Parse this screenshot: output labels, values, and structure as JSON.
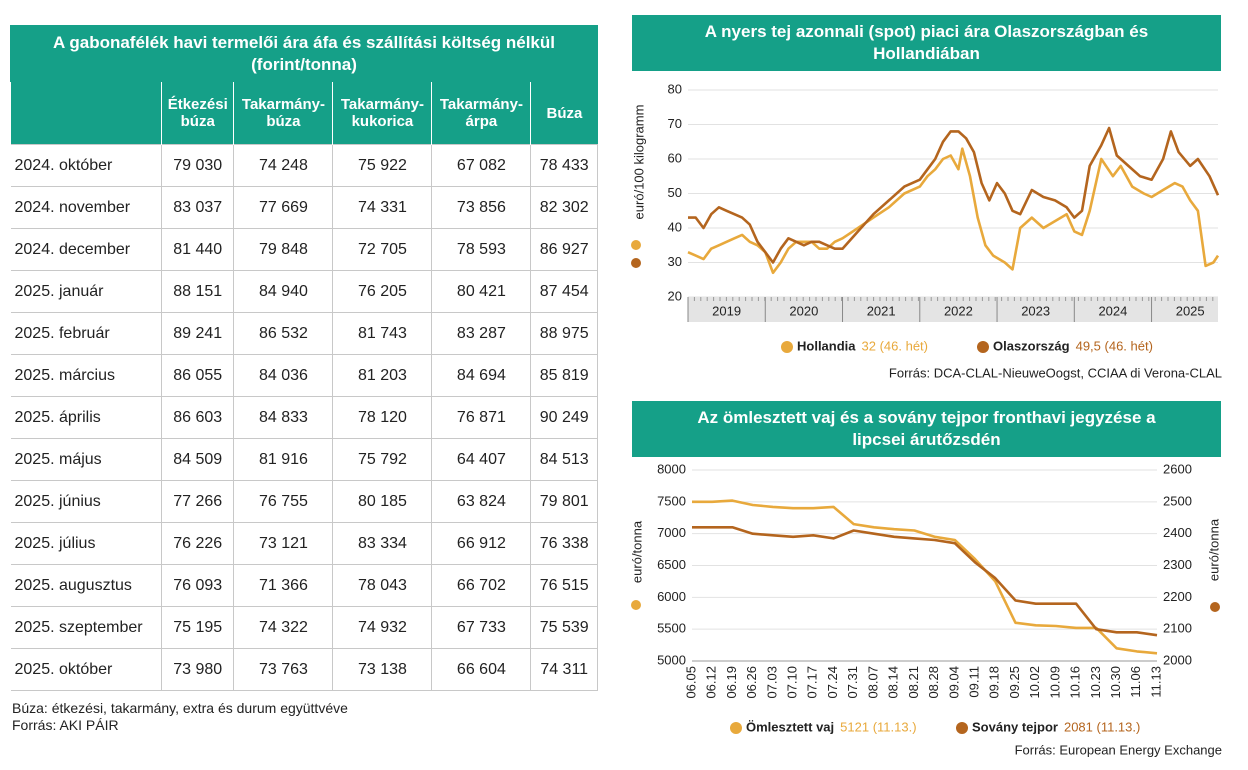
{
  "table": {
    "title": "A gabonafélék havi termelői ára áfa és szállítási költség nélkül (forint/tonna)",
    "header": [
      "Étkezési\nbúza",
      "Takarmány-\nbúza",
      "Takarmány-\nkukorica",
      "Takarmány-\nárpa",
      "Búza"
    ],
    "rows": [
      [
        "2024. október",
        "79 030",
        "74 248",
        "75 922",
        "67 082",
        "78 433"
      ],
      [
        "2024. november",
        "83 037",
        "77 669",
        "74 331",
        "73 856",
        "82 302"
      ],
      [
        "2024. december",
        "81 440",
        "79 848",
        "72 705",
        "78 593",
        "86 927"
      ],
      [
        "2025. január",
        "88 151",
        "84 940",
        "76 205",
        "80 421",
        "87 454"
      ],
      [
        "2025. február",
        "89 241",
        "86 532",
        "81 743",
        "83 287",
        "88 975"
      ],
      [
        "2025. március",
        "86 055",
        "84 036",
        "81 203",
        "84 694",
        "85 819"
      ],
      [
        "2025. április",
        "86 603",
        "84 833",
        "78 120",
        "76 871",
        "90 249"
      ],
      [
        "2025. május",
        "84 509",
        "81 916",
        "75 792",
        "64 407",
        "84 513"
      ],
      [
        "2025. június",
        "77 266",
        "76 755",
        "80 185",
        "63 824",
        "79 801"
      ],
      [
        "2025. július",
        "76 226",
        "73 121",
        "83 334",
        "66 912",
        "76 338"
      ],
      [
        "2025. augusztus",
        "76 093",
        "71 366",
        "78 043",
        "66 702",
        "76 515"
      ],
      [
        "2025. szeptember",
        "75 195",
        "74 322",
        "74 932",
        "67 733",
        "75 539"
      ],
      [
        "2025. október",
        "73 980",
        "73 763",
        "73 138",
        "66 604",
        "74 311"
      ]
    ],
    "notes": [
      "Búza: étkezési, takarmány, extra és durum együttvéve",
      "Forrás: AKI PÁIR"
    ]
  },
  "chart_data": [
    {
      "type": "line",
      "title": "A nyers tej azonnali (spot) piaci ára Olaszországban és Hollandiában",
      "y_label": "euró/100 kilogramm",
      "xlim": [
        2019,
        2025.86
      ],
      "xticks": [
        2019,
        2020,
        2021,
        2022,
        2023,
        2024,
        2025
      ],
      "ylim": [
        20,
        80
      ],
      "yticks": [
        20,
        30,
        40,
        50,
        60,
        70,
        80
      ],
      "grid": true,
      "series": [
        {
          "name": "Hollandia",
          "legend_note": "32 (46. hét)",
          "color": "#e8a93c",
          "x": [
            2019.0,
            2019.1,
            2019.2,
            2019.3,
            2019.4,
            2019.5,
            2019.6,
            2019.7,
            2019.8,
            2019.9,
            2020.0,
            2020.1,
            2020.2,
            2020.3,
            2020.4,
            2020.5,
            2020.6,
            2020.7,
            2020.8,
            2020.9,
            2021.0,
            2021.2,
            2021.4,
            2021.6,
            2021.8,
            2022.0,
            2022.1,
            2022.2,
            2022.3,
            2022.4,
            2022.5,
            2022.55,
            2022.65,
            2022.75,
            2022.85,
            2022.95,
            2023.1,
            2023.2,
            2023.3,
            2023.45,
            2023.6,
            2023.75,
            2023.9,
            2024.0,
            2024.1,
            2024.2,
            2024.35,
            2024.5,
            2024.6,
            2024.75,
            2024.9,
            2025.0,
            2025.15,
            2025.3,
            2025.4,
            2025.5,
            2025.6,
            2025.7,
            2025.8,
            2025.86
          ],
          "values": [
            33,
            32,
            31,
            34,
            35,
            36,
            37,
            38,
            36,
            35,
            33,
            27,
            30,
            34,
            36,
            36,
            36,
            34,
            34,
            36,
            37,
            40,
            43,
            46,
            50,
            52,
            55,
            57,
            60,
            61,
            57,
            63,
            55,
            43,
            35,
            32,
            30,
            28,
            40,
            43,
            40,
            42,
            44,
            39,
            38,
            45,
            60,
            55,
            58,
            52,
            50,
            49,
            51,
            53,
            52,
            48,
            45,
            29,
            30,
            32
          ]
        },
        {
          "name": "Olaszország",
          "legend_note": "49,5 (46. hét)",
          "color": "#b4651e",
          "x": [
            2019.0,
            2019.1,
            2019.2,
            2019.3,
            2019.4,
            2019.5,
            2019.6,
            2019.7,
            2019.8,
            2019.9,
            2020.0,
            2020.1,
            2020.2,
            2020.3,
            2020.4,
            2020.5,
            2020.6,
            2020.7,
            2020.8,
            2020.9,
            2021.0,
            2021.2,
            2021.4,
            2021.6,
            2021.8,
            2022.0,
            2022.1,
            2022.2,
            2022.3,
            2022.4,
            2022.5,
            2022.6,
            2022.7,
            2022.8,
            2022.9,
            2023.0,
            2023.1,
            2023.2,
            2023.3,
            2023.45,
            2023.6,
            2023.75,
            2023.9,
            2024.0,
            2024.1,
            2024.2,
            2024.35,
            2024.45,
            2024.55,
            2024.7,
            2024.85,
            2025.0,
            2025.15,
            2025.25,
            2025.35,
            2025.5,
            2025.6,
            2025.75,
            2025.86
          ],
          "values": [
            43,
            43,
            40,
            44,
            46,
            45,
            44,
            43,
            41,
            36,
            33,
            30,
            34,
            37,
            36,
            35,
            36,
            36,
            35,
            34,
            34,
            39,
            44,
            48,
            52,
            54,
            57,
            60,
            65,
            68,
            68,
            66,
            62,
            53,
            48,
            53,
            50,
            45,
            44,
            51,
            49,
            48,
            46,
            43,
            45,
            58,
            64,
            69,
            61,
            58,
            55,
            54,
            60,
            68,
            62,
            58,
            60,
            55,
            49.5
          ]
        }
      ],
      "source": "Forrás: DCA-CLAL-NieuweOogst, CCIAA di Verona-CLAL"
    },
    {
      "type": "line",
      "title": "Az ömlesztett vaj és a sovány tejpor fronthavi jegyzése a lipcsei árutőzsdén",
      "y_label": "euró/tonna",
      "y2_label": "euró/tonna",
      "categories": [
        "06.05",
        "06.12",
        "06.19",
        "06.26",
        "07.03",
        "07.10",
        "07.17",
        "07.24",
        "07.31",
        "08.07",
        "08.14",
        "08.21",
        "08.28",
        "09.04",
        "09.11",
        "09.18",
        "09.25",
        "10.02",
        "10.09",
        "10.16",
        "10.23",
        "10.30",
        "11.06",
        "11.13"
      ],
      "ylim": [
        5000,
        8000
      ],
      "yticks": [
        5000,
        5500,
        6000,
        6500,
        7000,
        7500,
        8000
      ],
      "y2lim": [
        2000,
        2600
      ],
      "y2ticks": [
        2000,
        2100,
        2200,
        2300,
        2400,
        2500,
        2600
      ],
      "grid": true,
      "series": [
        {
          "name": "Ömlesztett vaj",
          "legend_note": "5121 (11.13.)",
          "color": "#e8a93c",
          "values": [
            7500,
            7500,
            7520,
            7450,
            7420,
            7400,
            7400,
            7420,
            7150,
            7100,
            7070,
            7050,
            6950,
            6900,
            6600,
            6250,
            5600,
            5560,
            5550,
            5520,
            5520,
            5200,
            5150,
            5121
          ]
        },
        {
          "name": "Sovány tejpor",
          "legend_note": "2081 (11.13.)",
          "color": "#b4651e",
          "axis": "y2",
          "values": [
            2420,
            2420,
            2420,
            2400,
            2395,
            2390,
            2395,
            2385,
            2410,
            2400,
            2390,
            2385,
            2380,
            2370,
            2310,
            2260,
            2190,
            2180,
            2180,
            2180,
            2100,
            2090,
            2090,
            2081
          ]
        }
      ],
      "source": "Forrás: European Energy Exchange"
    }
  ]
}
